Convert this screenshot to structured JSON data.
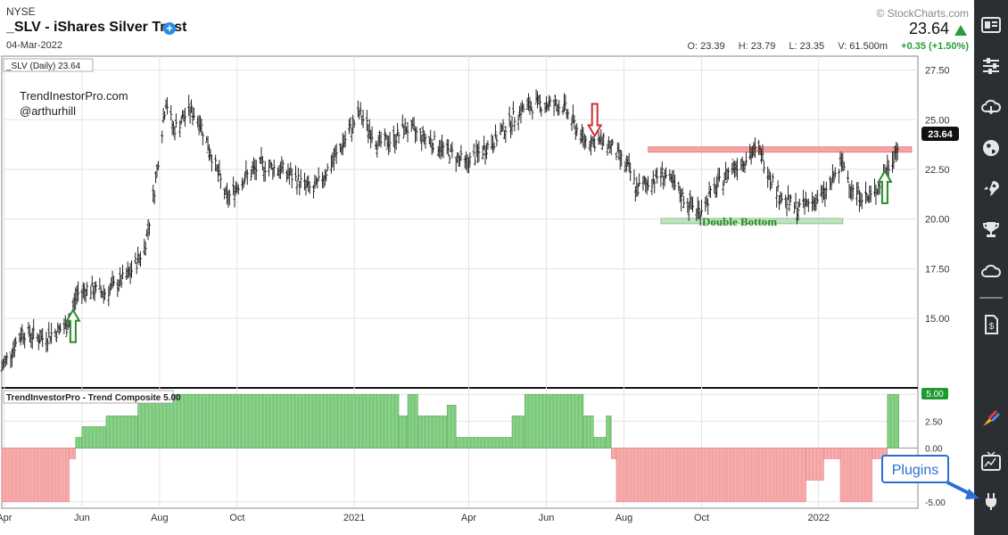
{
  "header": {
    "exchange": "NYSE",
    "title": "_SLV - iShares Silver Trust",
    "date": "04-Mar-2022",
    "brand": "© StockCharts.com",
    "last_price": "23.64",
    "ohlc": {
      "open_label": "O:",
      "open": "23.39",
      "high_label": "H:",
      "high": "23.79",
      "low_label": "L:",
      "low": "23.35",
      "volume_label": "V:",
      "volume": "61.500m",
      "change": "+0.35 (+1.50%)"
    }
  },
  "colors": {
    "bars": "#222222",
    "green_fill": "#7cc97c",
    "red_fill": "#f5a3a3",
    "accent_blue": "#2b6fd6",
    "up_green": "#2a9d3c",
    "sidebar_bg": "#2b2e33"
  },
  "chart_data": [
    {
      "type": "ohlc",
      "panel": "price",
      "label": "_SLV (Daily) 23.64",
      "last_value_label": "23.64",
      "y_ticks": [
        "27.50",
        "25.00",
        "22.50",
        "20.00",
        "17.50",
        "15.00"
      ],
      "ylim": [
        11.5,
        28.2
      ],
      "x_ticks": [
        "Apr",
        "Jun",
        "Aug",
        "Oct",
        "2021",
        "Apr",
        "Jun",
        "Aug",
        "Oct",
        "2022"
      ],
      "x_tick_dates": [
        "2020-04-01",
        "2020-06-01",
        "2020-08-01",
        "2020-10-01",
        "2021-01-01",
        "2021-04-01",
        "2021-06-01",
        "2021-08-01",
        "2021-10-01",
        "2022-01-01"
      ],
      "x_range": [
        "2020-03-30",
        "2022-03-20"
      ],
      "grid": true,
      "series": [
        {
          "x": [
            "2020-03-30",
            "2020-04-15",
            "2020-05-01",
            "2020-05-20",
            "2020-05-28",
            "2020-06-05",
            "2020-06-20",
            "2020-07-08",
            "2020-07-20",
            "2020-07-27",
            "2020-08-06",
            "2020-08-12",
            "2020-08-25",
            "2020-09-01",
            "2020-09-23",
            "2020-10-05",
            "2020-10-20",
            "2020-11-05",
            "2020-11-30",
            "2020-12-18",
            "2021-01-05",
            "2021-01-20",
            "2021-02-01",
            "2021-02-10",
            "2021-03-01",
            "2021-03-30",
            "2021-04-20",
            "2021-05-12",
            "2021-05-25",
            "2021-06-14",
            "2021-06-30",
            "2021-07-20",
            "2021-08-05",
            "2021-08-11",
            "2021-09-01",
            "2021-09-20",
            "2021-09-29",
            "2021-10-15",
            "2021-10-25",
            "2021-11-15",
            "2021-12-01",
            "2021-12-15",
            "2022-01-05",
            "2022-01-20",
            "2022-01-28",
            "2022-02-10",
            "2022-02-20",
            "2022-03-04"
          ],
          "close": [
            12.5,
            14.3,
            14.0,
            14.6,
            16.2,
            16.5,
            16.3,
            17.2,
            18.5,
            21.0,
            26.0,
            24.5,
            25.5,
            25.0,
            21.0,
            22.0,
            22.7,
            22.5,
            21.4,
            23.2,
            25.3,
            23.8,
            24.0,
            24.6,
            24.0,
            22.8,
            23.9,
            25.5,
            25.8,
            25.7,
            24.0,
            23.8,
            22.5,
            21.5,
            22.3,
            20.8,
            20.4,
            21.8,
            22.6,
            23.5,
            21.2,
            20.5,
            21.2,
            22.8,
            21.4,
            21.0,
            22.0,
            23.64
          ]
        }
      ],
      "annotations": [
        {
          "text": "TrendInestorPro.com"
        },
        {
          "text": "@arthurhill"
        },
        {
          "text": "Double Bottom",
          "color": "#2a8a2a"
        },
        {
          "kind": "resistance-band",
          "y": 23.5,
          "color": "#f5a3a3"
        },
        {
          "kind": "support-band",
          "y": 19.9,
          "color": "#bfe3bf"
        },
        {
          "kind": "arrow-up",
          "date": "2020-05-25",
          "y": 13.8,
          "color": "#2a8a2a"
        },
        {
          "kind": "arrow-down",
          "date": "2021-07-09",
          "y": 25.8,
          "color": "#d03030"
        },
        {
          "kind": "arrow-up",
          "date": "2022-02-22",
          "y": 20.8,
          "color": "#2a8a2a"
        }
      ]
    },
    {
      "type": "area",
      "panel": "indicator",
      "label": "TrendInvestorPro - Trend Composite 5.00",
      "last_value_label": "5.00",
      "y_ticks": [
        "5.00",
        "2.50",
        "0.00",
        "-5.00"
      ],
      "ylim": [
        -5.6,
        5.6
      ],
      "series": [
        {
          "steps": [
            {
              "start": "2020-03-30",
              "end": "2020-05-22",
              "value": -5
            },
            {
              "start": "2020-05-22",
              "end": "2020-05-27",
              "value": -1
            },
            {
              "start": "2020-05-27",
              "end": "2020-06-01",
              "value": 1
            },
            {
              "start": "2020-06-01",
              "end": "2020-06-20",
              "value": 2
            },
            {
              "start": "2020-06-20",
              "end": "2020-07-15",
              "value": 3
            },
            {
              "start": "2020-07-15",
              "end": "2021-02-05",
              "value": 5
            },
            {
              "start": "2021-02-05",
              "end": "2021-02-12",
              "value": 3
            },
            {
              "start": "2021-02-12",
              "end": "2021-02-20",
              "value": 5
            },
            {
              "start": "2021-02-20",
              "end": "2021-03-15",
              "value": 3
            },
            {
              "start": "2021-03-15",
              "end": "2021-03-22",
              "value": 4
            },
            {
              "start": "2021-03-22",
              "end": "2021-05-05",
              "value": 1
            },
            {
              "start": "2021-05-05",
              "end": "2021-05-15",
              "value": 3
            },
            {
              "start": "2021-05-15",
              "end": "2021-06-30",
              "value": 5
            },
            {
              "start": "2021-06-30",
              "end": "2021-07-08",
              "value": 3
            },
            {
              "start": "2021-07-08",
              "end": "2021-07-18",
              "value": 1
            },
            {
              "start": "2021-07-18",
              "end": "2021-07-22",
              "value": 3
            },
            {
              "start": "2021-07-22",
              "end": "2021-07-26",
              "value": -1
            },
            {
              "start": "2021-07-26",
              "end": "2021-12-22",
              "value": -5
            },
            {
              "start": "2021-12-22",
              "end": "2022-01-05",
              "value": -3
            },
            {
              "start": "2022-01-05",
              "end": "2022-01-18",
              "value": -1
            },
            {
              "start": "2022-01-18",
              "end": "2022-02-12",
              "value": -5
            },
            {
              "start": "2022-02-12",
              "end": "2022-02-24",
              "value": -1
            },
            {
              "start": "2022-02-24",
              "end": "2022-03-05",
              "value": 5
            }
          ]
        }
      ]
    }
  ],
  "sidebar": {
    "icons": [
      "chart-settings-icon",
      "sliders-icon",
      "cloud-download-icon",
      "globe-icon",
      "rocket-icon",
      "trophy-icon",
      "cloud-icon",
      "document-icon",
      "acp-brush-icon",
      "chart-tv-icon",
      "plug-icon"
    ]
  },
  "callout": {
    "text": "Plugins"
  }
}
